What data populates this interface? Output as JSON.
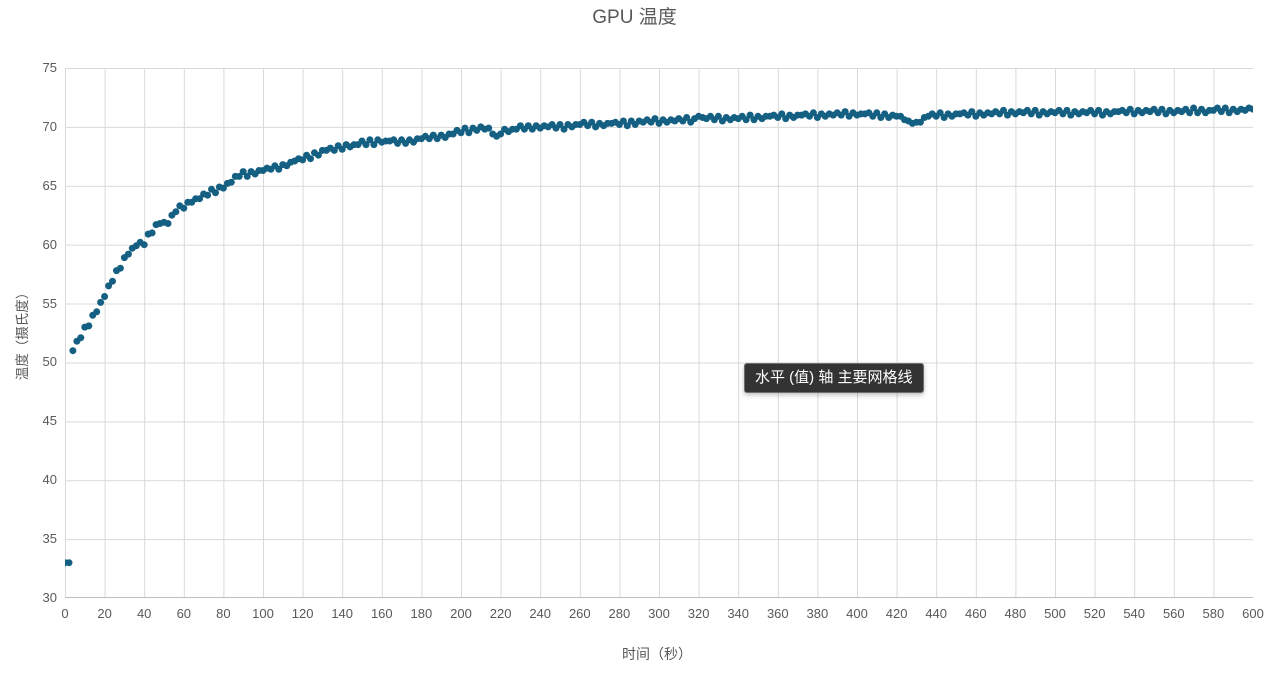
{
  "chart": {
    "tooltip_text": "水平 (值) 轴 主要网格线",
    "colors": {
      "marker": "#156082",
      "gridline": "#D9D9D9",
      "axis_line": "#BFBFBF",
      "text": "#595959",
      "tooltip_bg": "#333333",
      "tooltip_text": "#FFFFFF",
      "background": "#FFFFFF"
    }
  },
  "chart_data": {
    "type": "scatter",
    "title": "GPU 温度",
    "xlabel": "时间（秒）",
    "ylabel": "温度（摄氏度）",
    "xlim": [
      0,
      600
    ],
    "ylim": [
      30,
      75
    ],
    "x_ticks": [
      0,
      20,
      40,
      60,
      80,
      100,
      120,
      140,
      160,
      180,
      200,
      220,
      240,
      260,
      280,
      300,
      320,
      340,
      360,
      380,
      400,
      420,
      440,
      460,
      480,
      500,
      520,
      540,
      560,
      580,
      600
    ],
    "y_ticks": [
      30,
      35,
      40,
      45,
      50,
      55,
      60,
      65,
      70,
      75
    ],
    "grid": "both-major",
    "legend": "none",
    "marker_color": "#156082",
    "series": [
      {
        "name": "GPU 温度",
        "points": [
          [
            0,
            33
          ],
          [
            2,
            33
          ],
          [
            4,
            51
          ],
          [
            6,
            51.8
          ],
          [
            8,
            52.1
          ],
          [
            10,
            53
          ],
          [
            12,
            53.1
          ],
          [
            14,
            54
          ],
          [
            16,
            54.3
          ],
          [
            18,
            55.1
          ],
          [
            20,
            55.6
          ],
          [
            22,
            56.5
          ],
          [
            24,
            56.9
          ],
          [
            26,
            57.8
          ],
          [
            28,
            58
          ],
          [
            30,
            58.9
          ],
          [
            32,
            59.2
          ],
          [
            34,
            59.7
          ],
          [
            36,
            59.9
          ],
          [
            38,
            60.2
          ],
          [
            40,
            60
          ],
          [
            42,
            60.9
          ],
          [
            44,
            61
          ],
          [
            46,
            61.7
          ],
          [
            48,
            61.8
          ],
          [
            50,
            61.9
          ],
          [
            52,
            61.8
          ],
          [
            54,
            62.5
          ],
          [
            56,
            62.8
          ],
          [
            58,
            63.3
          ],
          [
            60,
            63.1
          ],
          [
            62,
            63.6
          ],
          [
            64,
            63.6
          ],
          [
            66,
            63.9
          ],
          [
            68,
            63.9
          ],
          [
            70,
            64.3
          ],
          [
            72,
            64.2
          ],
          [
            74,
            64.7
          ],
          [
            76,
            64.4
          ],
          [
            78,
            64.9
          ],
          [
            80,
            64.8
          ],
          [
            82,
            65.2
          ],
          [
            84,
            65.3
          ],
          [
            86,
            65.8
          ],
          [
            88,
            65.8
          ],
          [
            90,
            66.2
          ],
          [
            92,
            65.8
          ],
          [
            94,
            66.2
          ],
          [
            96,
            66
          ],
          [
            98,
            66.3
          ],
          [
            100,
            66.3
          ],
          [
            102,
            66.5
          ],
          [
            104,
            66.4
          ],
          [
            106,
            66.7
          ],
          [
            108,
            66.4
          ],
          [
            110,
            66.8
          ],
          [
            112,
            66.7
          ],
          [
            114,
            67
          ],
          [
            116,
            67.1
          ],
          [
            118,
            67.3
          ],
          [
            120,
            67.2
          ],
          [
            122,
            67.6
          ],
          [
            124,
            67.3
          ],
          [
            126,
            67.8
          ],
          [
            128,
            67.6
          ],
          [
            130,
            68
          ],
          [
            132,
            68
          ],
          [
            134,
            68.2
          ],
          [
            136,
            68
          ],
          [
            138,
            68.4
          ],
          [
            140,
            68.1
          ],
          [
            142,
            68.5
          ],
          [
            144,
            68.3
          ],
          [
            146,
            68.5
          ],
          [
            148,
            68.5
          ],
          [
            150,
            68.8
          ],
          [
            152,
            68.5
          ],
          [
            154,
            68.9
          ],
          [
            156,
            68.5
          ],
          [
            158,
            68.9
          ],
          [
            160,
            68.7
          ],
          [
            162,
            68.8
          ],
          [
            164,
            68.8
          ],
          [
            166,
            68.9
          ],
          [
            168,
            68.6
          ],
          [
            170,
            68.9
          ],
          [
            172,
            68.6
          ],
          [
            174,
            68.9
          ],
          [
            176,
            68.7
          ],
          [
            178,
            69
          ],
          [
            180,
            69
          ],
          [
            182,
            69.2
          ],
          [
            184,
            69
          ],
          [
            186,
            69.3
          ],
          [
            188,
            69
          ],
          [
            190,
            69.3
          ],
          [
            192,
            69.1
          ],
          [
            194,
            69.4
          ],
          [
            196,
            69.4
          ],
          [
            198,
            69.7
          ],
          [
            200,
            69.5
          ],
          [
            202,
            69.9
          ],
          [
            204,
            69.5
          ],
          [
            206,
            69.9
          ],
          [
            208,
            69.7
          ],
          [
            210,
            70
          ],
          [
            212,
            69.8
          ],
          [
            214,
            69.9
          ],
          [
            216,
            69.4
          ],
          [
            218,
            69.2
          ],
          [
            220,
            69.4
          ],
          [
            222,
            69.8
          ],
          [
            224,
            69.6
          ],
          [
            226,
            69.8
          ],
          [
            228,
            69.8
          ],
          [
            230,
            70.1
          ],
          [
            232,
            69.8
          ],
          [
            234,
            70.1
          ],
          [
            236,
            69.8
          ],
          [
            238,
            70.1
          ],
          [
            240,
            69.9
          ],
          [
            242,
            70.1
          ],
          [
            244,
            70
          ],
          [
            246,
            70.2
          ],
          [
            248,
            69.9
          ],
          [
            250,
            70.2
          ],
          [
            252,
            69.8
          ],
          [
            254,
            70.2
          ],
          [
            256,
            70
          ],
          [
            258,
            70.2
          ],
          [
            260,
            70.2
          ],
          [
            262,
            70.4
          ],
          [
            264,
            70.1
          ],
          [
            266,
            70.4
          ],
          [
            268,
            70
          ],
          [
            270,
            70.3
          ],
          [
            272,
            70.1
          ],
          [
            274,
            70.3
          ],
          [
            276,
            70.3
          ],
          [
            278,
            70.4
          ],
          [
            280,
            70.2
          ],
          [
            282,
            70.5
          ],
          [
            284,
            70.1
          ],
          [
            286,
            70.5
          ],
          [
            288,
            70.2
          ],
          [
            290,
            70.5
          ],
          [
            292,
            70.4
          ],
          [
            294,
            70.6
          ],
          [
            296,
            70.4
          ],
          [
            298,
            70.7
          ],
          [
            300,
            70.3
          ],
          [
            302,
            70.6
          ],
          [
            304,
            70.4
          ],
          [
            306,
            70.6
          ],
          [
            308,
            70.5
          ],
          [
            310,
            70.7
          ],
          [
            312,
            70.5
          ],
          [
            314,
            70.8
          ],
          [
            316,
            70.4
          ],
          [
            318,
            70.7
          ],
          [
            320,
            70.9
          ],
          [
            322,
            70.8
          ],
          [
            324,
            70.7
          ],
          [
            326,
            70.9
          ],
          [
            328,
            70.6
          ],
          [
            330,
            70.9
          ],
          [
            332,
            70.5
          ],
          [
            334,
            70.8
          ],
          [
            336,
            70.6
          ],
          [
            338,
            70.8
          ],
          [
            340,
            70.7
          ],
          [
            342,
            70.9
          ],
          [
            344,
            70.6
          ],
          [
            346,
            71
          ],
          [
            348,
            70.6
          ],
          [
            350,
            70.9
          ],
          [
            352,
            70.7
          ],
          [
            354,
            70.9
          ],
          [
            356,
            70.9
          ],
          [
            358,
            71
          ],
          [
            360,
            70.8
          ],
          [
            362,
            71.1
          ],
          [
            364,
            70.7
          ],
          [
            366,
            71
          ],
          [
            368,
            70.8
          ],
          [
            370,
            71
          ],
          [
            372,
            71
          ],
          [
            374,
            71.1
          ],
          [
            376,
            70.9
          ],
          [
            378,
            71.2
          ],
          [
            380,
            70.8
          ],
          [
            382,
            71.1
          ],
          [
            384,
            70.9
          ],
          [
            386,
            71.1
          ],
          [
            388,
            71
          ],
          [
            390,
            71.2
          ],
          [
            392,
            71
          ],
          [
            394,
            71.3
          ],
          [
            396,
            70.9
          ],
          [
            398,
            71.2
          ],
          [
            400,
            71
          ],
          [
            402,
            71.1
          ],
          [
            404,
            71.1
          ],
          [
            406,
            71.2
          ],
          [
            408,
            70.9
          ],
          [
            410,
            71.2
          ],
          [
            412,
            70.8
          ],
          [
            414,
            71.1
          ],
          [
            416,
            70.8
          ],
          [
            418,
            71
          ],
          [
            420,
            70.9
          ],
          [
            422,
            70.9
          ],
          [
            424,
            70.6
          ],
          [
            426,
            70.5
          ],
          [
            428,
            70.3
          ],
          [
            430,
            70.4
          ],
          [
            432,
            70.4
          ],
          [
            434,
            70.8
          ],
          [
            436,
            70.9
          ],
          [
            438,
            71.1
          ],
          [
            440,
            70.9
          ],
          [
            442,
            71.2
          ],
          [
            444,
            70.8
          ],
          [
            446,
            71.1
          ],
          [
            448,
            70.9
          ],
          [
            450,
            71.1
          ],
          [
            452,
            71.1
          ],
          [
            454,
            71.2
          ],
          [
            456,
            71
          ],
          [
            458,
            71.3
          ],
          [
            460,
            70.9
          ],
          [
            462,
            71.2
          ],
          [
            464,
            71
          ],
          [
            466,
            71.2
          ],
          [
            468,
            71.1
          ],
          [
            470,
            71.3
          ],
          [
            472,
            71.1
          ],
          [
            474,
            71.4
          ],
          [
            476,
            71
          ],
          [
            478,
            71.3
          ],
          [
            480,
            71.1
          ],
          [
            482,
            71.3
          ],
          [
            484,
            71.2
          ],
          [
            486,
            71.4
          ],
          [
            488,
            71.1
          ],
          [
            490,
            71.4
          ],
          [
            492,
            71
          ],
          [
            494,
            71.3
          ],
          [
            496,
            71.1
          ],
          [
            498,
            71.3
          ],
          [
            500,
            71.2
          ],
          [
            502,
            71.4
          ],
          [
            504,
            71.1
          ],
          [
            506,
            71.4
          ],
          [
            508,
            71
          ],
          [
            510,
            71.3
          ],
          [
            512,
            71.1
          ],
          [
            514,
            71.3
          ],
          [
            516,
            71.2
          ],
          [
            518,
            71.4
          ],
          [
            520,
            71.1
          ],
          [
            522,
            71.4
          ],
          [
            524,
            71
          ],
          [
            526,
            71.3
          ],
          [
            528,
            71.1
          ],
          [
            530,
            71.3
          ],
          [
            532,
            71.3
          ],
          [
            534,
            71.4
          ],
          [
            536,
            71.2
          ],
          [
            538,
            71.5
          ],
          [
            540,
            71.1
          ],
          [
            542,
            71.4
          ],
          [
            544,
            71.2
          ],
          [
            546,
            71.4
          ],
          [
            548,
            71.3
          ],
          [
            550,
            71.5
          ],
          [
            552,
            71.2
          ],
          [
            554,
            71.5
          ],
          [
            556,
            71.1
          ],
          [
            558,
            71.4
          ],
          [
            560,
            71.2
          ],
          [
            562,
            71.4
          ],
          [
            564,
            71.3
          ],
          [
            566,
            71.5
          ],
          [
            568,
            71.2
          ],
          [
            570,
            71.6
          ],
          [
            572,
            71.2
          ],
          [
            574,
            71.5
          ],
          [
            576,
            71.2
          ],
          [
            578,
            71.4
          ],
          [
            580,
            71.4
          ],
          [
            582,
            71.6
          ],
          [
            584,
            71.3
          ],
          [
            586,
            71.6
          ],
          [
            588,
            71.2
          ],
          [
            590,
            71.5
          ],
          [
            592,
            71.3
          ],
          [
            594,
            71.5
          ],
          [
            596,
            71.4
          ],
          [
            598,
            71.6
          ],
          [
            600,
            71.5
          ]
        ]
      }
    ]
  }
}
